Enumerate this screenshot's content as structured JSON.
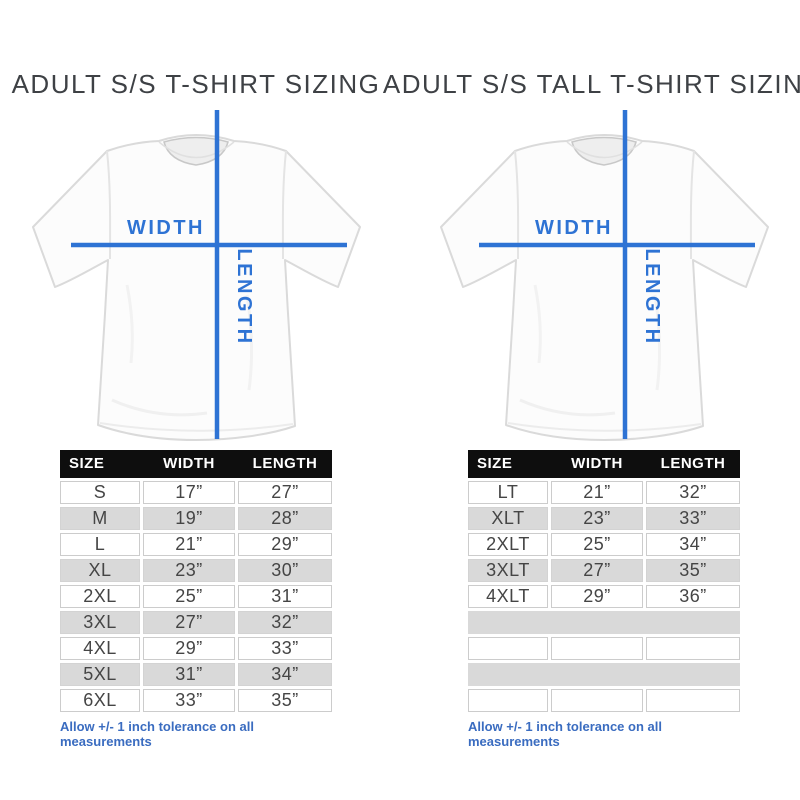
{
  "colors": {
    "accent_blue": "#2e73d4",
    "footnote_blue": "#3a6cc0",
    "header_bg": "#0e0e0e",
    "header_text": "#ffffff",
    "row_gray": "#d9d9d9",
    "row_white": "#ffffff",
    "cell_border": "#cccccc",
    "title_text": "#3e4145"
  },
  "columns": [
    {
      "title": "ADULT S/S T-SHIRT SIZING",
      "diagram": {
        "width_label": "WIDTH",
        "length_label": "LENGTH"
      },
      "table": {
        "headers": [
          "SIZE",
          "WIDTH",
          "LENGTH"
        ],
        "rows": [
          [
            "S",
            "17”",
            "27”"
          ],
          [
            "M",
            "19”",
            "28”"
          ],
          [
            "L",
            "21”",
            "29”"
          ],
          [
            "XL",
            "23”",
            "30”"
          ],
          [
            "2XL",
            "25”",
            "31”"
          ],
          [
            "3XL",
            "27”",
            "32”"
          ],
          [
            "4XL",
            "29”",
            "33”"
          ],
          [
            "5XL",
            "31”",
            "34”"
          ],
          [
            "6XL",
            "33”",
            "35”"
          ]
        ],
        "footnote": "Allow +/- 1 inch tolerance on all measurements"
      }
    },
    {
      "title": "ADULT S/S TALL T-SHIRT SIZING",
      "diagram": {
        "width_label": "WIDTH",
        "length_label": "LENGTH"
      },
      "table": {
        "headers": [
          "SIZE",
          "WIDTH",
          "LENGTH"
        ],
        "rows": [
          [
            "LT",
            "21”",
            "32”"
          ],
          [
            "XLT",
            "23”",
            "33”"
          ],
          [
            "2XLT",
            "25”",
            "34”"
          ],
          [
            "3XLT",
            "27”",
            "35”"
          ],
          [
            "4XLT",
            "29”",
            "36”"
          ],
          [
            "",
            "",
            ""
          ],
          [
            "",
            "",
            ""
          ],
          [
            "",
            "",
            ""
          ],
          [
            "",
            "",
            ""
          ]
        ],
        "footnote": "Allow +/- 1 inch tolerance on all measurements"
      }
    }
  ]
}
